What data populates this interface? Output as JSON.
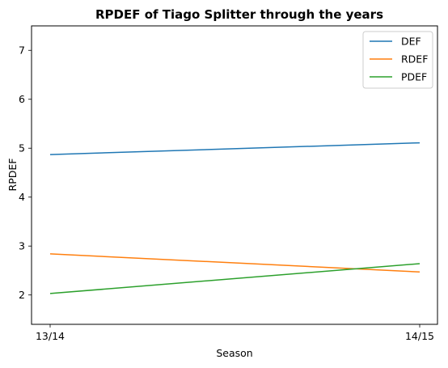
{
  "chart_data": {
    "type": "line",
    "title": "RPDEF of Tiago Splitter through the years",
    "xlabel": "Season",
    "ylabel": "RPDEF",
    "categories": [
      "13/14",
      "14/15"
    ],
    "ylim": [
      1.4,
      7.5
    ],
    "yticks": [
      2,
      3,
      4,
      5,
      6,
      7
    ],
    "grid": false,
    "legend_position": "top-right",
    "series": [
      {
        "name": "DEF",
        "values": [
          4.87,
          5.11
        ],
        "color": "#1f77b4"
      },
      {
        "name": "RDEF",
        "values": [
          2.84,
          2.47
        ],
        "color": "#ff7f0e"
      },
      {
        "name": "PDEF",
        "values": [
          2.03,
          2.64
        ],
        "color": "#2ca02c"
      }
    ]
  }
}
